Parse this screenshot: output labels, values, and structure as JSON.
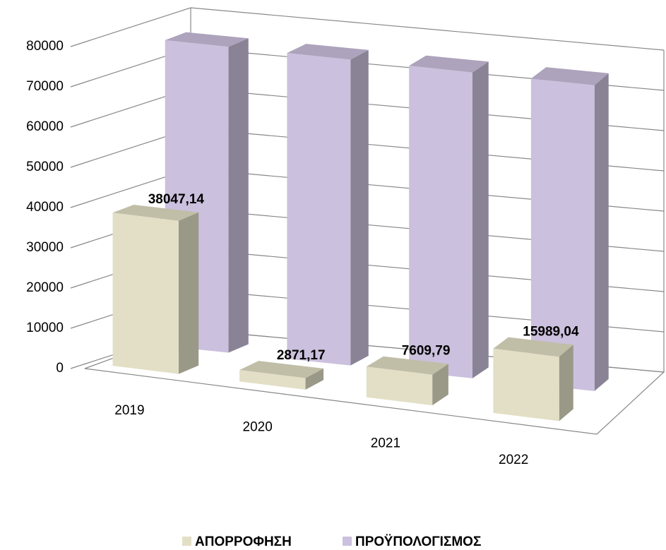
{
  "chart_data": {
    "type": "bar3d",
    "categories": [
      "2019",
      "2020",
      "2021",
      "2022"
    ],
    "series": [
      {
        "name": "ΑΠΟΡΡΟΦΗΣΗ",
        "color": "#e3dfc6",
        "values": [
          38047.14,
          2871.17,
          7609.79,
          15989.04
        ],
        "value_labels": [
          "38047,14",
          "2871,17",
          "7609,79",
          "15989,04"
        ]
      },
      {
        "name": "ΠΡΟΫΠΟΛΟΓΙΣΜΟΣ",
        "color": "#cbc0dd",
        "values": [
          76000,
          76000,
          76000,
          76000
        ]
      }
    ],
    "ylim": [
      0,
      80000
    ],
    "yticks": [
      0,
      10000,
      20000,
      30000,
      40000,
      50000,
      60000,
      70000,
      80000
    ],
    "grid": true,
    "legend": "bottom"
  }
}
